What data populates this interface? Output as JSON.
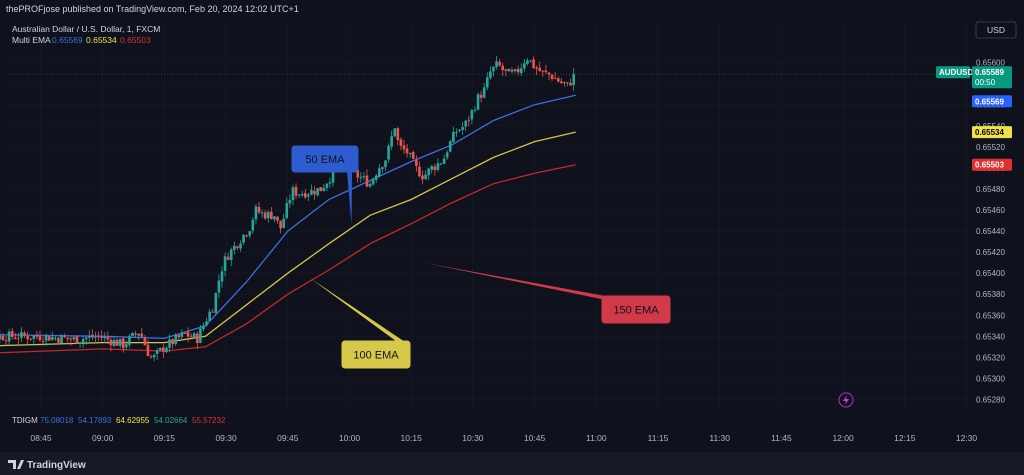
{
  "header": {
    "published_text": "thePROFjose published on TradingView.com, Feb 20, 2024 12:02 UTC+1"
  },
  "legend": {
    "symbol_line": "Australian Dollar / U.S. Dollar, 1, FXCM",
    "indicator_name": "Multi EMA",
    "values": [
      {
        "text": "0.65569",
        "color": "#3d6fe0"
      },
      {
        "text": "0.65534",
        "color": "#f0e14a"
      },
      {
        "text": "0.65503",
        "color": "#e03030"
      }
    ]
  },
  "currency_button": "USD",
  "price_tags": {
    "symbol": "AUDUSD",
    "last_price": "0.65589",
    "countdown": "00:50",
    "ema50": "0.65569",
    "ema100": "0.65534",
    "ema150": "0.65503"
  },
  "lower_indicator": {
    "name": "TDIGM",
    "values": [
      {
        "text": "75.08018",
        "color": "#3d6fe0"
      },
      {
        "text": "54.17893",
        "color": "#3d6fe0"
      },
      {
        "text": "64.62955",
        "color": "#f0e14a"
      },
      {
        "text": "54.02664",
        "color": "#26a69a"
      },
      {
        "text": "55.57232",
        "color": "#e03030"
      }
    ]
  },
  "annotations": [
    {
      "id": "ema50",
      "text": "50 EMA",
      "color": "#2f5bd1"
    },
    {
      "id": "ema100",
      "text": "100 EMA",
      "color": "#d6c84a"
    },
    {
      "id": "ema150",
      "text": "150 EMA",
      "color": "#d23a4a"
    }
  ],
  "footer": {
    "brand": "TradingView"
  },
  "colors": {
    "background": "#0f121c",
    "up": "#26a69a",
    "down": "#ef5350",
    "ema50": "#3d6fe0",
    "ema100": "#d4c24a",
    "ema150": "#c62828"
  },
  "chart_data": {
    "type": "candlestick",
    "symbol": "AUDUSD",
    "timeframe": "1",
    "x_tick_labels": [
      "08:45",
      "09:00",
      "09:15",
      "09:30",
      "09:45",
      "10:00",
      "10:15",
      "10:30",
      "10:45",
      "11:00",
      "11:15",
      "11:30",
      "11:45",
      "12:00",
      "12:15",
      "12:30"
    ],
    "y_tick_labels": [
      "0.65280",
      "0.65300",
      "0.65320",
      "0.65340",
      "0.65360",
      "0.65380",
      "0.65400",
      "0.65420",
      "0.65440",
      "0.65460",
      "0.65480",
      "0.65500",
      "0.65520",
      "0.65540",
      "0.65560",
      "0.65580",
      "0.65600"
    ],
    "y_range": [
      0.6527,
      0.65612
    ],
    "x_range_minutes": [
      -19.5,
      136
    ],
    "close_anchors": [
      [
        0,
        0.6534
      ],
      [
        8,
        0.65337
      ],
      [
        14,
        0.6534
      ],
      [
        20,
        0.65332
      ],
      [
        24,
        0.65345
      ],
      [
        26,
        0.65325
      ],
      [
        27,
        0.65318
      ],
      [
        30,
        0.6533
      ],
      [
        35,
        0.65342
      ],
      [
        38,
        0.65338
      ],
      [
        40,
        0.65355
      ],
      [
        42,
        0.6537
      ],
      [
        43,
        0.6539
      ],
      [
        44,
        0.65405
      ],
      [
        45,
        0.65415
      ],
      [
        47,
        0.65425
      ],
      [
        48,
        0.6543
      ],
      [
        51,
        0.65445
      ],
      [
        52,
        0.6546
      ],
      [
        54,
        0.65456
      ],
      [
        57,
        0.65455
      ],
      [
        58,
        0.6544
      ],
      [
        60,
        0.65465
      ],
      [
        61,
        0.65478
      ],
      [
        63,
        0.65476
      ],
      [
        66,
        0.65478
      ],
      [
        68,
        0.6548
      ],
      [
        70,
        0.6549
      ],
      [
        73,
        0.65504
      ],
      [
        76,
        0.65495
      ],
      [
        80,
        0.65485
      ],
      [
        82,
        0.655
      ],
      [
        84,
        0.6551
      ],
      [
        85,
        0.65525
      ],
      [
        86,
        0.6554
      ],
      [
        87,
        0.6552
      ],
      [
        89,
        0.65515
      ],
      [
        91,
        0.655
      ],
      [
        93,
        0.65492
      ],
      [
        95,
        0.655
      ],
      [
        97,
        0.65505
      ],
      [
        98,
        0.6551
      ],
      [
        99,
        0.6552
      ],
      [
        101,
        0.65535
      ],
      [
        103,
        0.6554
      ],
      [
        105,
        0.65555
      ],
      [
        106,
        0.65565
      ],
      [
        108,
        0.65575
      ],
      [
        109,
        0.6559
      ],
      [
        111,
        0.65598
      ],
      [
        113,
        0.6559
      ],
      [
        115,
        0.65588
      ],
      [
        117,
        0.65598
      ],
      [
        118,
        0.65606
      ],
      [
        120,
        0.65596
      ],
      [
        122,
        0.6559
      ],
      [
        124,
        0.65588
      ],
      [
        126,
        0.65582
      ],
      [
        128,
        0.65578
      ],
      [
        130,
        0.65589
      ]
    ],
    "series": [
      {
        "name": "50 EMA",
        "color": "#3d6fe0",
        "points": [
          [
            -19.5,
            0.65342
          ],
          [
            15,
            0.6534
          ],
          [
            30,
            0.65338
          ],
          [
            40,
            0.6535
          ],
          [
            50,
            0.65392
          ],
          [
            60,
            0.6544
          ],
          [
            70,
            0.6547
          ],
          [
            80,
            0.65488
          ],
          [
            90,
            0.65506
          ],
          [
            100,
            0.65522
          ],
          [
            110,
            0.65545
          ],
          [
            120,
            0.6556
          ],
          [
            130,
            0.65569
          ]
        ]
      },
      {
        "name": "100 EMA",
        "color": "#d4c24a",
        "points": [
          [
            -19.5,
            0.6533
          ],
          [
            15,
            0.65334
          ],
          [
            30,
            0.65334
          ],
          [
            40,
            0.6534
          ],
          [
            50,
            0.6537
          ],
          [
            60,
            0.654
          ],
          [
            70,
            0.65428
          ],
          [
            80,
            0.65455
          ],
          [
            90,
            0.6547
          ],
          [
            100,
            0.6549
          ],
          [
            110,
            0.6551
          ],
          [
            120,
            0.65525
          ],
          [
            130,
            0.65534
          ]
        ]
      },
      {
        "name": "150 EMA",
        "color": "#c62828",
        "points": [
          [
            -19.5,
            0.65323
          ],
          [
            15,
            0.65328
          ],
          [
            30,
            0.65326
          ],
          [
            40,
            0.6533
          ],
          [
            50,
            0.65352
          ],
          [
            60,
            0.6538
          ],
          [
            70,
            0.65403
          ],
          [
            80,
            0.65428
          ],
          [
            90,
            0.65447
          ],
          [
            100,
            0.65467
          ],
          [
            110,
            0.65485
          ],
          [
            120,
            0.65495
          ],
          [
            130,
            0.65503
          ]
        ]
      }
    ]
  }
}
